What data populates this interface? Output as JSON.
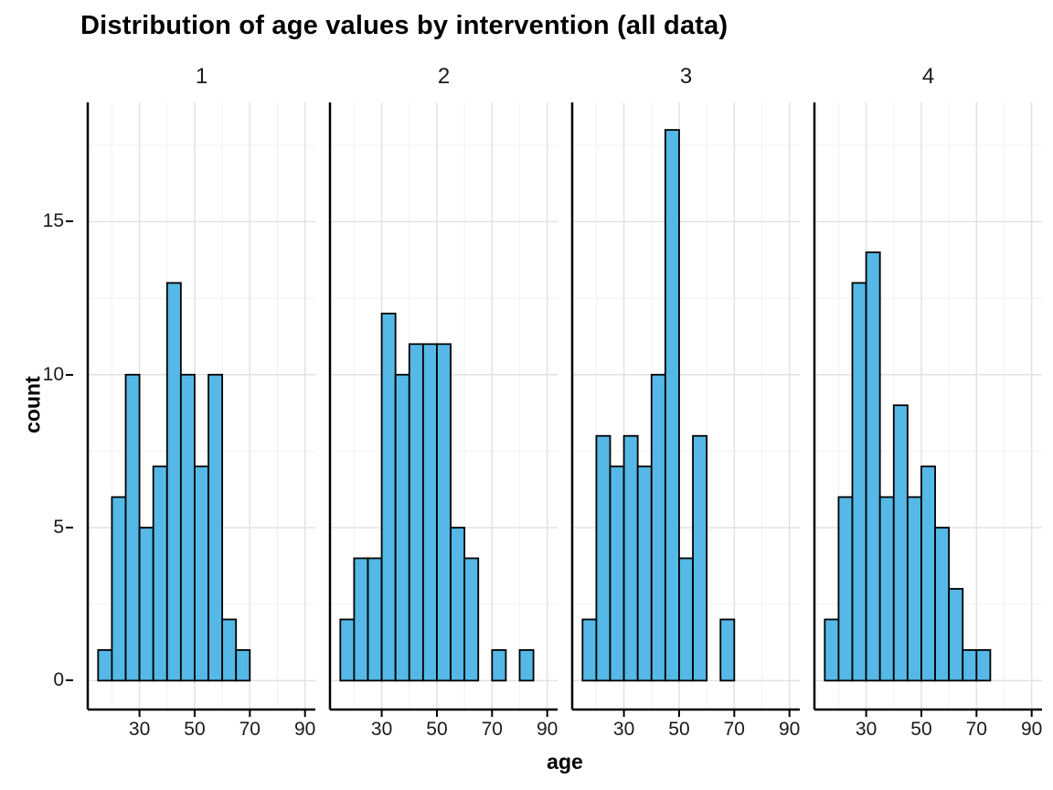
{
  "title": "Distribution of age values by intervention (all data)",
  "chart_data": {
    "type": "bar",
    "subtype": "faceted-histogram",
    "title": "Distribution of age values by intervention (all data)",
    "xlabel": "age",
    "ylabel": "count",
    "bin_width": 5,
    "x_ticks": [
      30,
      50,
      70,
      90
    ],
    "x_minor_ticks": [
      20,
      40,
      60,
      80
    ],
    "y_ticks": [
      0,
      5,
      10,
      15
    ],
    "y_minor_ticks": [
      2.5,
      7.5,
      12.5,
      17.5
    ],
    "x_domain": [
      11.25,
      93.75
    ],
    "y_domain": [
      -0.945,
      18.9
    ],
    "bar_fill": "#55B8E6",
    "bar_stroke": "#000000",
    "grid_major_color": "#E2E2E2",
    "grid_minor_color": "#F1F1F1",
    "axis_color": "#000000",
    "legend": "none",
    "facets": [
      {
        "label": "1",
        "bin_start": 15,
        "counts": [
          1,
          6,
          10,
          5,
          7,
          13,
          10,
          7,
          10,
          2,
          1
        ]
      },
      {
        "label": "2",
        "bin_start": 15,
        "counts": [
          2,
          4,
          4,
          12,
          10,
          11,
          11,
          11,
          5,
          4,
          0,
          1,
          0,
          1
        ]
      },
      {
        "label": "3",
        "bin_start": 15,
        "counts": [
          2,
          8,
          7,
          8,
          7,
          10,
          18,
          4,
          8,
          0,
          2
        ]
      },
      {
        "label": "4",
        "bin_start": 15,
        "counts": [
          2,
          6,
          13,
          14,
          6,
          9,
          6,
          7,
          5,
          3,
          1,
          1
        ]
      }
    ]
  }
}
